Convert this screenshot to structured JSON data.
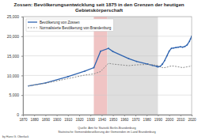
{
  "chart_data": {
    "type": "line",
    "title": "Zossen: Bevölkerungsentwicklung seit 1875 in den Grenzen der heutigen Gebietskörperschaft",
    "x": [
      1875,
      1890,
      1910,
      1925,
      1933,
      1939,
      1946,
      1950,
      1964,
      1971,
      1981,
      1985,
      1989,
      1990,
      1992,
      1994,
      1996,
      1998,
      2000,
      2002,
      2004,
      2006,
      2008,
      2010,
      2012,
      2014,
      2016,
      2018,
      2019,
      2020
    ],
    "series": [
      {
        "name": "Bevölkerung von Zossen",
        "color": "#2f64b0",
        "marker": "circle",
        "line_style": "solid",
        "values": [
          7335,
          8100,
          9700,
          11100,
          12000,
          16200,
          16900,
          16100,
          14300,
          13600,
          12900,
          12600,
          12300,
          12200,
          12300,
          12900,
          13800,
          15000,
          16200,
          16900,
          17000,
          17100,
          17200,
          17300,
          17200,
          17400,
          17800,
          18700,
          19300,
          20000
        ]
      },
      {
        "name": "Normalisierte Bevölkerung von Brandenburg",
        "color": "#8c8c8c",
        "line_style": "dashed",
        "values": [
          7335,
          8000,
          9200,
          10100,
          10400,
          11000,
          13100,
          12900,
          12500,
          12700,
          12800,
          12700,
          12600,
          12500,
          12200,
          12000,
          12000,
          12100,
          12300,
          12400,
          12400,
          12300,
          12200,
          12100,
          12000,
          12100,
          12200,
          12300,
          12400,
          12500
        ]
      }
    ],
    "shaded_periods": [
      {
        "start": 1933,
        "end": 1945,
        "color": "#f0c4c4"
      },
      {
        "start": 1945,
        "end": 1990,
        "color": "#dedede"
      }
    ],
    "xlim": [
      1870,
      2020
    ],
    "xticks": [
      1870,
      1880,
      1890,
      1900,
      1910,
      1920,
      1930,
      1940,
      1950,
      1960,
      1970,
      1980,
      1990,
      2000,
      2010,
      2020
    ],
    "ylim": [
      0,
      25000
    ],
    "yticks": [
      0,
      {
        "value": 5000,
        "label": "5,000"
      },
      {
        "value": 10000,
        "label": "10,000"
      },
      {
        "value": 15000,
        "label": "15,000"
      },
      {
        "value": 20000,
        "label": "20,000"
      },
      {
        "value": 25000,
        "label": "25,000"
      }
    ],
    "grid": true,
    "legend": "top-left",
    "annotations": [
      "by Hans G. Oberlack",
      "Quelle: Amt für Statistik Berlin-Brandenburg",
      "Statistische Gemeindebevölkerung der Gemeinden im Land Brandenburg"
    ]
  }
}
